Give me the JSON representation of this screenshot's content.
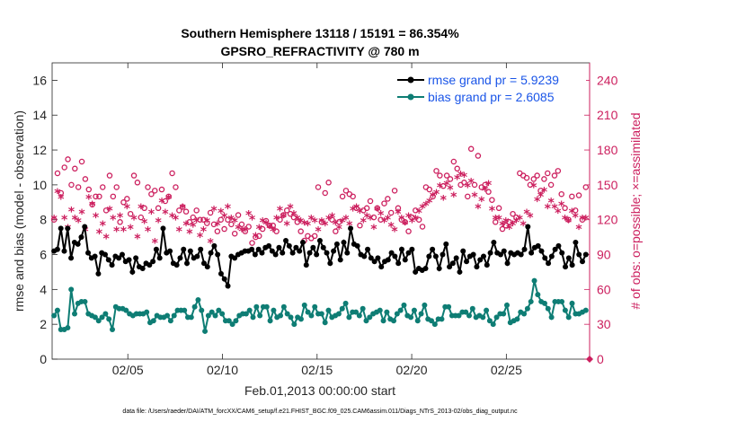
{
  "chart_data": {
    "type": "line",
    "title_line1": "Southern Hemisphere 13118 / 15191 = 86.354%",
    "title_line2": "GPSRO_REFRACTIVITY @ 780 m",
    "xlabel": "Feb.01,2013 00:00:00 start",
    "ylabel_left": "rmse and bias (model - observation)",
    "ylabel_right": "# of obs: o=possible; ×=assimilated",
    "footnote": "data file: /Users/raeder/DAI/ATM_forcXX/CAM6_setup/f.e21.FHIST_BGC.f09_025.CAM6assim.011/Diags_NTrS_2013-02/obs_diag_output.nc",
    "xlim": [
      1,
      29.4
    ],
    "ylim_left": [
      0,
      17
    ],
    "ylim_right": [
      0,
      255
    ],
    "x_ticks": [
      5,
      10,
      15,
      20,
      25
    ],
    "x_tick_labels": [
      "02/05",
      "02/10",
      "02/15",
      "02/20",
      "02/25"
    ],
    "y_ticks_left": [
      0,
      2,
      4,
      6,
      8,
      10,
      12,
      14,
      16
    ],
    "y_ticks_right": [
      0,
      30,
      60,
      90,
      120,
      150,
      180,
      210,
      240
    ],
    "colors": {
      "rmse": "#000000",
      "bias": "#0e7d74",
      "obs": "#cc1f5e",
      "legend_text": "#1a55e8"
    },
    "legend": [
      {
        "series": "rmse",
        "label": "rmse grand pr = 5.9239"
      },
      {
        "series": "bias",
        "label": "bias grand pr = 2.6085"
      }
    ],
    "series": [
      {
        "name": "rmse",
        "axis": "left",
        "values": [
          6.2,
          6.3,
          7.5,
          6.2,
          7.5,
          5.8,
          6.7,
          6.6,
          7.0,
          7.6,
          6.1,
          5.8,
          5.9,
          4.9,
          6.1,
          6.0,
          5.7,
          5.4,
          5.9,
          5.8,
          6.0,
          5.6,
          5.7,
          5.0,
          5.8,
          5.3,
          5.2,
          5.5,
          5.4,
          5.6,
          6.3,
          5.8,
          7.5,
          6.1,
          6.2,
          5.5,
          5.4,
          5.8,
          6.3,
          5.5,
          6.2,
          5.8,
          5.9,
          6.3,
          5.5,
          5.3,
          6.1,
          6.5,
          6.0,
          4.9,
          4.6,
          4.2,
          5.9,
          5.8,
          6.0,
          6.1,
          6.2,
          6.2,
          6.3,
          6.0,
          6.3,
          6.1,
          6.4,
          6.5,
          6.2,
          6.0,
          6.4,
          6.1,
          6.8,
          6.5,
          6.1,
          6.4,
          6.2,
          6.7,
          5.4,
          6.1,
          6.4,
          6.0,
          6.8,
          6.4,
          6.1,
          5.5,
          6.2,
          6.6,
          5.7,
          6.7,
          6.1,
          7.5,
          6.6,
          6.5,
          6.0,
          5.9,
          6.3,
          5.8,
          5.6,
          5.8,
          5.3,
          5.6,
          5.7,
          6.1,
          5.9,
          5.5,
          6.3,
          5.7,
          6.1,
          6.3,
          5.0,
          5.2,
          5.1,
          5.2,
          5.9,
          6.3,
          5.9,
          5.2,
          6.0,
          6.6,
          5.3,
          5.5,
          5.8,
          5.0,
          6.2,
          5.6,
          5.9,
          6.0,
          5.3,
          5.7,
          5.9,
          5.4,
          6.1,
          6.7,
          6.1,
          6.0,
          6.2,
          5.5,
          6.1,
          6.0,
          6.1,
          6.0,
          6.3,
          7.6,
          6.1,
          6.4,
          6.5,
          6.2,
          5.8,
          5.5,
          5.9,
          6.3,
          6.5,
          6.1,
          5.3,
          5.8,
          5.4,
          6.7,
          6.0,
          5.6,
          6.0
        ]
      },
      {
        "name": "bias",
        "axis": "left",
        "values": [
          2.5,
          2.8,
          1.7,
          1.7,
          1.8,
          4.0,
          2.6,
          3.2,
          3.3,
          3.3,
          2.6,
          2.5,
          2.4,
          2.2,
          2.4,
          2.6,
          2.3,
          1.7,
          3.0,
          2.9,
          2.9,
          2.8,
          2.6,
          2.5,
          2.6,
          2.6,
          2.6,
          2.7,
          2.1,
          2.2,
          2.5,
          2.4,
          2.4,
          2.5,
          2.2,
          2.5,
          2.8,
          2.8,
          2.8,
          2.4,
          2.4,
          3.0,
          3.4,
          2.8,
          1.6,
          2.5,
          2.7,
          2.5,
          2.8,
          2.6,
          2.2,
          2.2,
          2.0,
          2.2,
          2.5,
          2.6,
          2.6,
          2.8,
          2.4,
          3.0,
          2.5,
          3.0,
          3.0,
          2.2,
          2.8,
          2.4,
          2.5,
          3.0,
          2.6,
          2.4,
          2.0,
          2.4,
          2.3,
          3.1,
          2.7,
          2.5,
          3.0,
          2.6,
          2.6,
          2.1,
          2.8,
          2.4,
          2.5,
          2.6,
          2.9,
          3.2,
          2.4,
          2.7,
          2.7,
          2.5,
          2.9,
          2.2,
          2.4,
          2.6,
          2.7,
          2.8,
          2.2,
          2.7,
          2.3,
          2.2,
          2.6,
          2.8,
          3.1,
          2.5,
          2.4,
          2.8,
          2.2,
          2.6,
          3.1,
          2.3,
          2.2,
          2.0,
          2.3,
          2.3,
          3.0,
          3.0,
          2.5,
          2.5,
          2.5,
          2.7,
          2.7,
          2.5,
          2.9,
          2.4,
          2.5,
          2.4,
          2.8,
          2.2,
          2.0,
          2.4,
          2.6,
          2.6,
          3.1,
          2.1,
          2.2,
          2.3,
          2.7,
          2.6,
          2.9,
          3.3,
          4.5,
          3.7,
          3.3,
          3.2,
          2.9,
          2.4,
          3.3,
          3.3,
          3.3,
          2.8,
          2.4,
          3.2,
          2.6,
          2.6,
          2.7,
          2.8
        ]
      },
      {
        "name": "obs_possible",
        "axis": "right",
        "values": [
          120,
          160,
          143,
          165,
          172,
          150,
          164,
          148,
          170,
          155,
          146,
          133,
          140,
          140,
          148,
          128,
          158,
          140,
          148,
          118,
          135,
          138,
          125,
          158,
          152,
          122,
          130,
          148,
          142,
          145,
          130,
          146,
          136,
          140,
          160,
          148,
          128,
          131,
          127,
          118,
          122,
          128,
          120,
          120,
          117,
          126,
          116,
          110,
          120,
          112,
          120,
          116,
          108,
          124,
          116,
          110,
          114,
          100,
          105,
          106,
          112,
          119,
          115,
          115,
          110,
          120,
          124,
          128,
          125,
          122,
          118,
          110,
          102,
          106,
          104,
          106,
          148,
          118,
          143,
          152,
          120,
          110,
          118,
          140,
          145,
          142,
          140,
          130,
          115,
          128,
          130,
          136,
          122,
          130,
          120,
          134,
          138,
          126,
          145,
          130,
          120,
          118,
          110,
          122,
          128,
          120,
          114,
          148,
          146,
          140,
          162,
          158,
          149,
          158,
          155,
          170,
          164,
          150,
          152,
          140,
          181,
          150,
          175,
          148,
          150,
          144,
          137,
          118,
          130,
          112,
          115,
          118,
          125,
          122,
          160,
          158,
          156,
          150,
          155,
          158,
          145,
          155,
          160,
          150,
          158,
          162,
          142,
          130,
          120,
          140,
          128,
          141,
          120,
          148
        ]
      },
      {
        "name": "obs_assimilated",
        "axis": "right",
        "values": [
          120,
          143,
          138,
          120,
          112,
          127,
          120,
          118,
          125,
          110,
          138,
          132,
          122,
          108,
          115,
          104,
          128,
          120,
          110,
          122,
          110,
          130,
          112,
          120,
          104,
          130,
          117,
          110,
          125,
          100,
          118,
          135,
          125,
          138,
          122,
          120,
          110,
          130,
          115,
          108,
          114,
          118,
          105,
          110,
          118,
          100,
          128,
          115,
          126,
          122,
          130,
          120,
          118,
          112,
          110,
          110,
          124,
          120,
          105,
          112,
          118,
          116,
          113,
          110,
          120,
          128,
          122,
          115,
          130,
          124,
          120,
          118,
          116,
          115,
          120,
          118,
          110,
          118,
          115,
          120,
          122,
          116,
          112,
          118,
          120,
          115,
          128,
          130,
          126,
          118,
          122,
          120,
          112,
          128,
          124,
          118,
          120,
          114,
          110,
          125,
          120,
          116,
          122,
          118,
          120,
          126,
          130,
          132,
          135,
          140,
          142,
          148,
          137,
          150,
          146,
          140,
          155,
          158,
          157,
          148,
          152,
          140,
          130,
          136,
          145,
          150,
          128,
          120,
          120,
          115,
          118,
          112,
          115,
          118,
          120,
          115,
          125,
          122,
          148,
          136,
          140,
          144,
          130,
          135,
          130,
          126,
          132,
          120,
          118,
          126,
          122,
          112,
          120,
          120
        ]
      }
    ]
  }
}
